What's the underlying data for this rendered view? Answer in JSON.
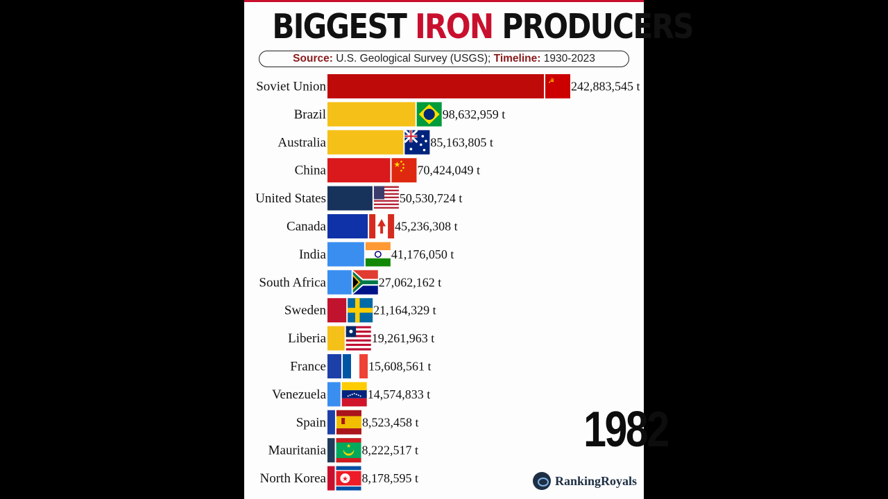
{
  "header": {
    "title_left": "BIGGEST",
    "title_highlight": "IRON",
    "title_right": "PRODUCERS",
    "source_key": "Source:",
    "source_value": "U.S. Geological Survey (USGS);",
    "timeline_key": "Timeline:",
    "timeline_value": "1930-2023"
  },
  "year": "1982",
  "brand": "RankingRoyals",
  "colors": {
    "accent": "#c8102e"
  },
  "chart_data": {
    "type": "bar",
    "orientation": "horizontal",
    "title": "BIGGEST IRON PRODUCERS",
    "unit": "t",
    "categories": [
      "Soviet Union",
      "Brazil",
      "Australia",
      "China",
      "United States",
      "Canada",
      "India",
      "South Africa",
      "Sweden",
      "Liberia",
      "France",
      "Venezuela",
      "Spain",
      "Mauritania",
      "North Korea"
    ],
    "values": [
      242883545,
      98632959,
      85163805,
      70424049,
      50530724,
      45236308,
      41176050,
      27062162,
      21164329,
      19261963,
      15608561,
      14574833,
      8523458,
      8222517,
      8178595
    ],
    "value_labels": [
      "242,883,545 t",
      "98,632,959 t",
      "85,163,805 t",
      "70,424,049 t",
      "50,530,724 t",
      "45,236,308 t",
      "41,176,050 t",
      "27,062,162 t",
      "21,164,329 t",
      "19,261,963 t",
      "15,608,561 t",
      "14,574,833 t",
      "8,523,458 t",
      "8,222,517 t",
      "8,178,595 t"
    ],
    "bar_colors": [
      "#bf0a0a",
      "#f5c017",
      "#f5c017",
      "#d9191b",
      "#17335c",
      "#1032a8",
      "#3a8ef0",
      "#3a8ef0",
      "#c2132e",
      "#f5c017",
      "#1d3fa8",
      "#3a8ef0",
      "#1d3fa8",
      "#1f3a5a",
      "#c8102e"
    ],
    "flags": [
      "soviet-union-flag",
      "brazil-flag",
      "australia-flag",
      "china-flag",
      "united-states-flag",
      "canada-flag",
      "india-flag",
      "south-africa-flag",
      "sweden-flag",
      "liberia-flag",
      "france-flag",
      "venezuela-flag",
      "spain-flag",
      "mauritania-flag",
      "north-korea-flag"
    ]
  }
}
